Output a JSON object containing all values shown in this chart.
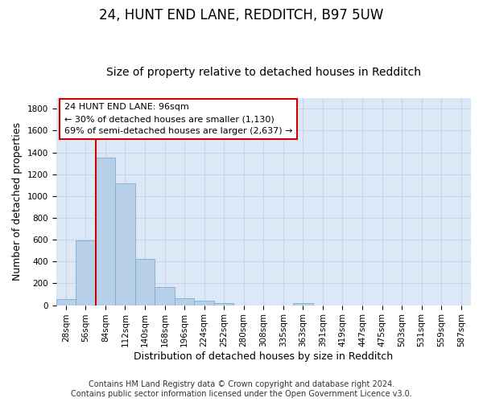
{
  "title": "24, HUNT END LANE, REDDITCH, B97 5UW",
  "subtitle": "Size of property relative to detached houses in Redditch",
  "xlabel": "Distribution of detached houses by size in Redditch",
  "ylabel": "Number of detached properties",
  "footer_line1": "Contains HM Land Registry data © Crown copyright and database right 2024.",
  "footer_line2": "Contains public sector information licensed under the Open Government Licence v3.0.",
  "bin_labels": [
    "28sqm",
    "56sqm",
    "84sqm",
    "112sqm",
    "140sqm",
    "168sqm",
    "196sqm",
    "224sqm",
    "252sqm",
    "280sqm",
    "308sqm",
    "335sqm",
    "363sqm",
    "391sqm",
    "419sqm",
    "447sqm",
    "475sqm",
    "503sqm",
    "531sqm",
    "559sqm",
    "587sqm"
  ],
  "bar_values": [
    55,
    595,
    1350,
    1120,
    425,
    170,
    60,
    40,
    20,
    0,
    0,
    0,
    20,
    0,
    0,
    0,
    0,
    0,
    0,
    0,
    0
  ],
  "bar_color": "#b8cfe8",
  "bar_edgecolor": "#7aaed4",
  "ylim": [
    0,
    1900
  ],
  "yticks": [
    0,
    200,
    400,
    600,
    800,
    1000,
    1200,
    1400,
    1600,
    1800
  ],
  "vline_x": 1.5,
  "vline_color": "#cc0000",
  "annotation_line1": "24 HUNT END LANE: 96sqm",
  "annotation_line2": "← 30% of detached houses are smaller (1,130)",
  "annotation_line3": "69% of semi-detached houses are larger (2,637) →",
  "annotation_box_color": "#cc0000",
  "annotation_bg": "#ffffff",
  "grid_color": "#c8d4e8",
  "bg_color": "#dce8f5",
  "title_fontsize": 12,
  "subtitle_fontsize": 10,
  "axis_label_fontsize": 9,
  "tick_fontsize": 7.5,
  "annotation_fontsize": 8,
  "footer_fontsize": 7
}
